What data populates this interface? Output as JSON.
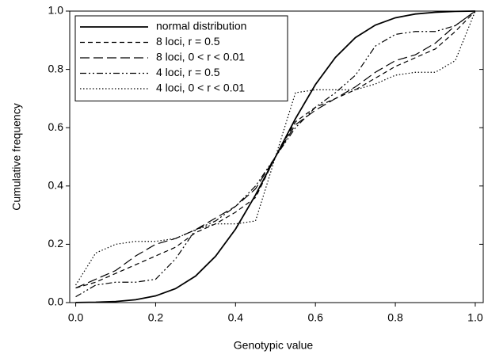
{
  "chart_data": {
    "type": "line",
    "xlabel": "Genotypic value",
    "ylabel": "Cumulative frequency",
    "x": [
      0,
      0.05,
      0.1,
      0.15,
      0.2,
      0.25,
      0.3,
      0.35,
      0.4,
      0.45,
      0.5,
      0.55,
      0.6,
      0.65,
      0.7,
      0.75,
      0.8,
      0.85,
      0.9,
      0.95,
      1.0
    ],
    "series": [
      {
        "name": "normal distribution",
        "color": "#000000",
        "dash": "none",
        "values": [
          0.0004,
          0.0013,
          0.0038,
          0.0098,
          0.023,
          0.048,
          0.091,
          0.159,
          0.252,
          0.369,
          0.5,
          0.631,
          0.748,
          0.841,
          0.909,
          0.952,
          0.977,
          0.99,
          0.996,
          0.999,
          1.0
        ]
      },
      {
        "name": "8 loci, r = 0.5",
        "color": "#000000",
        "dash": "6 4",
        "values": [
          0.05,
          0.07,
          0.1,
          0.13,
          0.16,
          0.19,
          0.24,
          0.27,
          0.31,
          0.36,
          0.5,
          0.62,
          0.67,
          0.7,
          0.73,
          0.77,
          0.81,
          0.84,
          0.87,
          0.93,
          1.0
        ]
      },
      {
        "name": "8 loci, 0 < r < 0.01",
        "color": "#000000",
        "dash": "12 5",
        "values": [
          0.05,
          0.08,
          0.11,
          0.16,
          0.2,
          0.22,
          0.25,
          0.29,
          0.33,
          0.39,
          0.5,
          0.61,
          0.66,
          0.7,
          0.74,
          0.79,
          0.83,
          0.85,
          0.89,
          0.95,
          1.0
        ]
      },
      {
        "name": "4 loci, r = 0.5",
        "color": "#000000",
        "dash": "8 3 2 3 2 3",
        "values": [
          0.02,
          0.06,
          0.07,
          0.07,
          0.08,
          0.15,
          0.25,
          0.28,
          0.33,
          0.4,
          0.5,
          0.6,
          0.67,
          0.72,
          0.78,
          0.88,
          0.92,
          0.93,
          0.93,
          0.95,
          1.0
        ]
      },
      {
        "name": "4 loci, 0 < r < 0.01",
        "color": "#000000",
        "dash": "1.5 2.5",
        "values": [
          0.06,
          0.17,
          0.2,
          0.21,
          0.21,
          0.22,
          0.25,
          0.27,
          0.27,
          0.28,
          0.5,
          0.72,
          0.73,
          0.73,
          0.73,
          0.75,
          0.78,
          0.79,
          0.79,
          0.83,
          1.0
        ]
      }
    ],
    "xlim": [
      -0.015,
      1.02
    ],
    "ylim": [
      0,
      1
    ],
    "xticks": [
      {
        "value": 0,
        "label": "0.0"
      },
      {
        "value": 0.2,
        "label": "0.2"
      },
      {
        "value": 0.4,
        "label": "0.4"
      },
      {
        "value": 0.6,
        "label": "0.6"
      },
      {
        "value": 0.8,
        "label": "0.8"
      },
      {
        "value": 1,
        "label": "1.0"
      }
    ],
    "yticks": [
      {
        "value": 0,
        "label": "0.0"
      },
      {
        "value": 0.2,
        "label": "0.2"
      },
      {
        "value": 0.4,
        "label": "0.4"
      },
      {
        "value": 0.6,
        "label": "0.6"
      },
      {
        "value": 0.8,
        "label": "0.8"
      },
      {
        "value": 1,
        "label": "1.0"
      }
    ],
    "legend": "upper left"
  }
}
